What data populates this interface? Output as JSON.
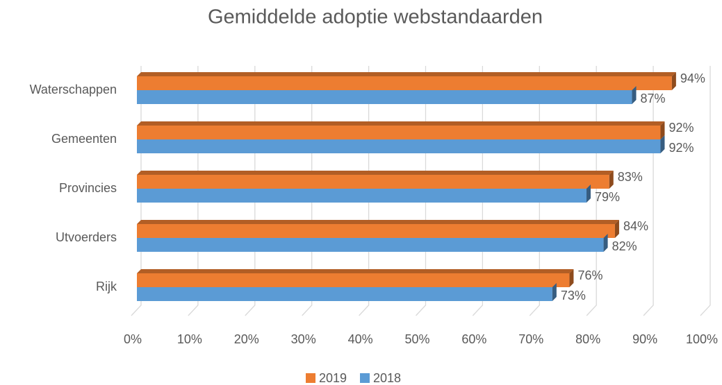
{
  "chart_data": {
    "type": "bar",
    "orientation": "horizontal",
    "title": "Gemiddelde adoptie webstandaarden",
    "categories": [
      "Waterschappen",
      "Gemeenten",
      "Provincies",
      "Utvoerders",
      "Rijk"
    ],
    "series": [
      {
        "name": "2019",
        "color": "#ed7d31",
        "values": [
          94,
          92,
          83,
          84,
          76
        ],
        "value_labels": [
          "94%",
          "92%",
          "83%",
          "84%",
          "76%"
        ]
      },
      {
        "name": "2018",
        "color": "#5b9bd5",
        "values": [
          87,
          92,
          79,
          82,
          73
        ],
        "value_labels": [
          "87%",
          "92%",
          "79%",
          "82%",
          "73%"
        ]
      }
    ],
    "xlim": [
      0,
      100
    ],
    "xticks": [
      {
        "value": 0,
        "label": "0%"
      },
      {
        "value": 10,
        "label": "10%"
      },
      {
        "value": 20,
        "label": "20%"
      },
      {
        "value": 30,
        "label": "30%"
      },
      {
        "value": 40,
        "label": "40%"
      },
      {
        "value": 50,
        "label": "50%"
      },
      {
        "value": 60,
        "label": "60%"
      },
      {
        "value": 70,
        "label": "70%"
      },
      {
        "value": 80,
        "label": "80%"
      },
      {
        "value": 90,
        "label": "90%"
      },
      {
        "value": 100,
        "label": "100%"
      }
    ],
    "grid": true,
    "legend": "bottom"
  }
}
